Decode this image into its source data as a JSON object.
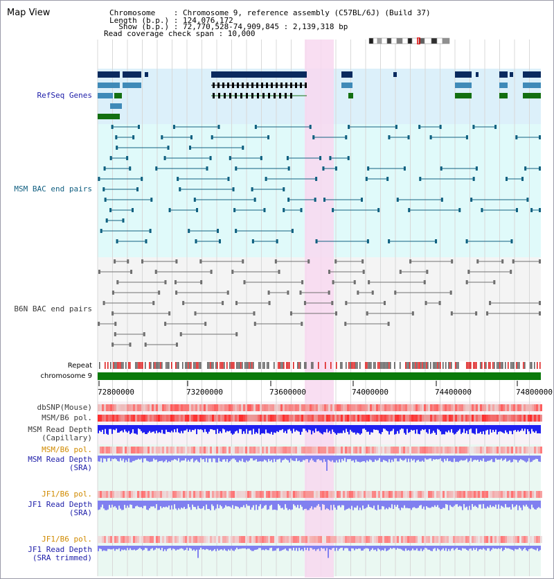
{
  "header": {
    "title": "Map View",
    "lines": [
      "Chromosome    : Chromosome 9, reference assembly (C57BL/6J) (Build 37)",
      "Length (b.p.) : 124,076,172",
      "  Show (b.p.) : 72,770,528-74,909,845 : 2,139,318 bp",
      "Read coverage check span : 10,000"
    ]
  },
  "tracks": {
    "refseq": "RefSeq Genes",
    "msm_bac": "MSM BAC end pairs",
    "b6n_bac": "B6N BAC end pairs",
    "repeat": "Repeat",
    "chromosome": "chromosome 9",
    "dbsnp": "dbSNP(Mouse)",
    "msm_b6_pol": "MSM/B6 pol.",
    "msm_depth_cap": "MSM Read Depth\n(Capillary)",
    "msm_b6_pol_sra": "MSM/B6 pol.",
    "msm_depth_sra": "MSM Read Depth\n(SRA)",
    "jf1_b6_pol": "JF1/B6 pol.",
    "jf1_depth_sra": "JF1 Read Depth\n(SRA)",
    "jf1_b6_pol_trim": "JF1/B6 pol.",
    "jf1_depth_trim": "JF1 Read Depth\n(SRA trimmed)"
  },
  "ruler": {
    "ticks": [
      "72800000",
      "73200000",
      "73600000",
      "74000000",
      "74400000",
      "74800000"
    ]
  },
  "colors": {
    "highlight": "#f8d8f0",
    "refseq_bg": "#dcf0fa",
    "msm_bg": "#e0fafa",
    "dark_gene": "#0a2a5e",
    "mid_gene": "#3f8ab8",
    "green_gene": "#136f10",
    "msm_pair": "#0f6080",
    "b6n_pair": "#707070",
    "chromosome": "#0b7a0b",
    "depth_blue": "#2020f0",
    "depth_light": "#8080f0"
  }
}
